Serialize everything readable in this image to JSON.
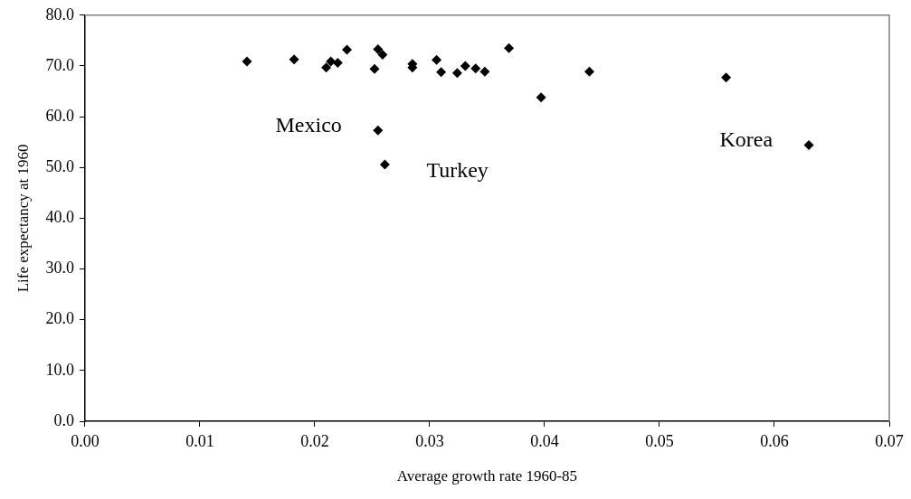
{
  "chart_data": {
    "type": "scatter",
    "xlabel": "Average growth rate 1960-85",
    "ylabel": "Life expectancy at 1960",
    "x": [
      0.0141,
      0.0182,
      0.021,
      0.0214,
      0.022,
      0.0228,
      0.0255,
      0.0259,
      0.0252,
      0.0285,
      0.0285,
      0.0306,
      0.031,
      0.0324,
      0.0331,
      0.034,
      0.0348,
      0.0369,
      0.0397,
      0.0255,
      0.0261,
      0.0439,
      0.0558,
      0.063
    ],
    "series": [
      {
        "color": "#000000",
        "values": [
          70.9,
          71.3,
          69.7,
          70.9,
          70.6,
          73.2,
          73.3,
          72.2,
          69.4,
          70.4,
          69.7,
          71.2,
          68.8,
          68.6,
          70.0,
          69.5,
          68.9,
          73.5,
          63.8,
          57.3,
          50.6,
          68.9,
          67.7,
          54.4
        ]
      }
    ],
    "xlim": [
      0,
      0.07
    ],
    "xticks": [
      {
        "value": 0,
        "label": "0.00"
      },
      {
        "value": 0.01,
        "label": "0.01"
      },
      {
        "value": 0.02,
        "label": "0.02"
      },
      {
        "value": 0.03,
        "label": "0.03"
      },
      {
        "value": 0.04,
        "label": "0.04"
      },
      {
        "value": 0.05,
        "label": "0.05"
      },
      {
        "value": 0.06,
        "label": "0.06"
      },
      {
        "value": 0.07,
        "label": "0.07"
      }
    ],
    "ylim": [
      0,
      80
    ],
    "yticks": [
      {
        "value": 0,
        "label": "0.0"
      },
      {
        "value": 10,
        "label": "10.0"
      },
      {
        "value": 20,
        "label": "20.0"
      },
      {
        "value": 30,
        "label": "30.0"
      },
      {
        "value": 40,
        "label": "40.0"
      },
      {
        "value": 50,
        "label": "50.0"
      },
      {
        "value": 60,
        "label": "60.0"
      },
      {
        "value": 70,
        "label": "70.0"
      },
      {
        "value": 80,
        "label": "80.0"
      }
    ],
    "annotations": [
      {
        "text": "Mexico",
        "x": 0.0255,
        "y": 57.3
      },
      {
        "text": "Turkey",
        "x": 0.0261,
        "y": 50.6
      },
      {
        "text": "Korea",
        "x": 0.063,
        "y": 54.4
      }
    ],
    "grid": false,
    "legend": false,
    "marker": "diamond"
  }
}
